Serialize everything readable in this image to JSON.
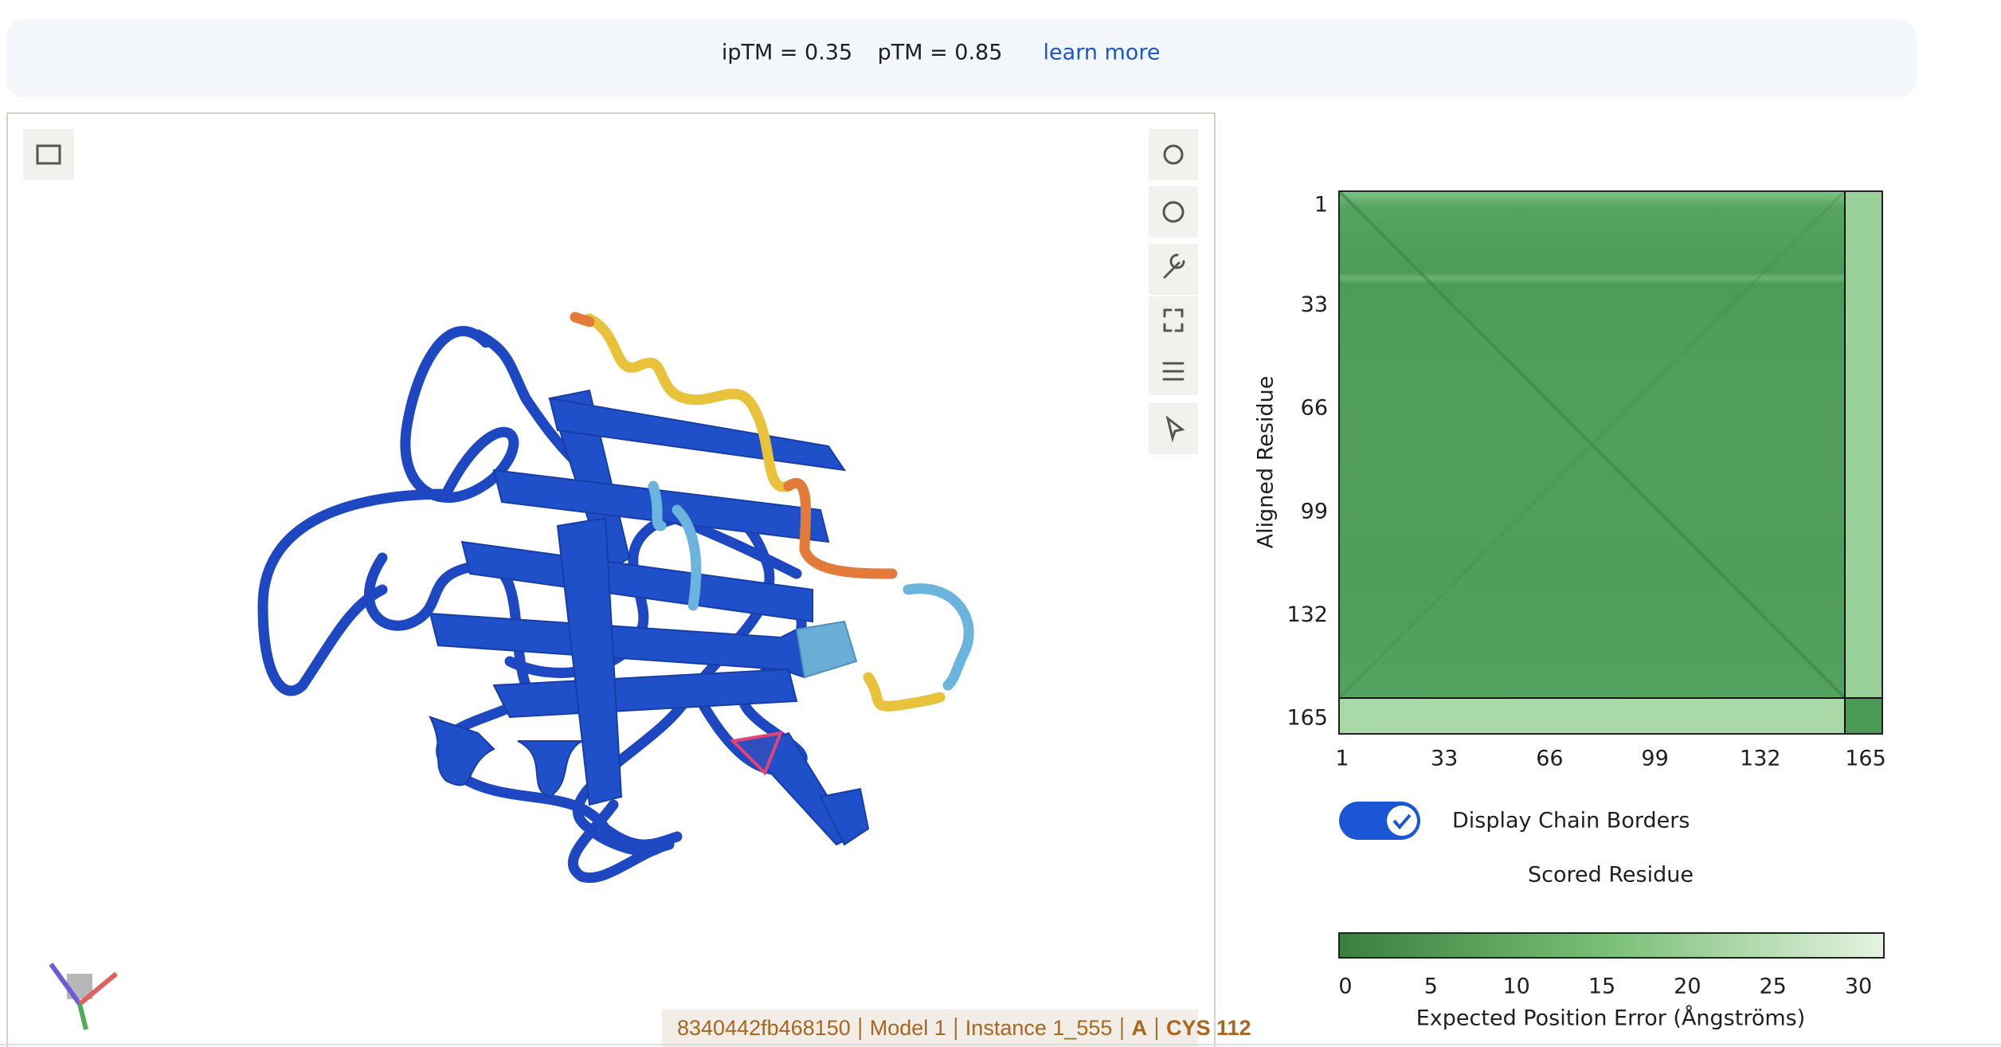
{
  "header": {
    "iptm": "ipTM = 0.35",
    "ptm": "pTM = 0.85",
    "link": "learn more"
  },
  "pae_plot": {
    "y_label": "Aligned Residue",
    "x_label": "Scored Residue",
    "y_ticks": [
      1,
      33,
      66,
      99,
      132,
      165
    ],
    "x_ticks": [
      1,
      33,
      66,
      99,
      132,
      165
    ]
  },
  "toggle": {
    "label": "Display Chain Borders",
    "checked": true
  },
  "colorbar": {
    "ticks": [
      0,
      5,
      10,
      15,
      20,
      25,
      30
    ],
    "label": "Expected Position Error (Ångströms)"
  },
  "status": {
    "id": "8340442fb468150",
    "model": "Model 1",
    "instance": "Instance 1_555",
    "chain": "A",
    "residue": "CYS 112"
  }
}
